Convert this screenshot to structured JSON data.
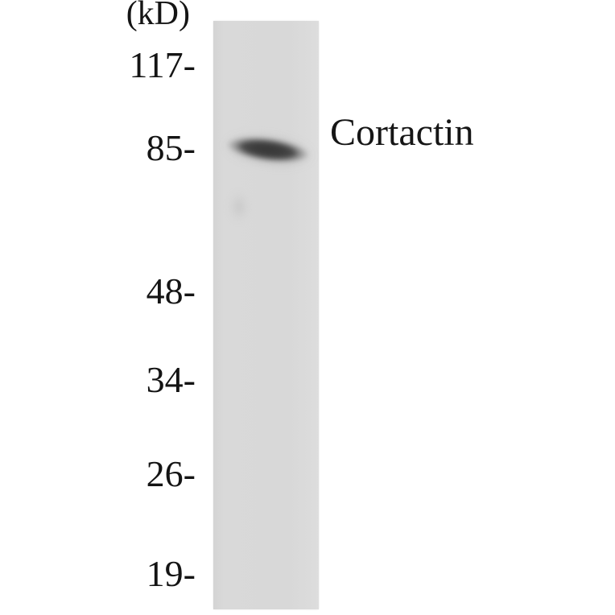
{
  "blot": {
    "unit_label": "(kD)",
    "markers": [
      "117-",
      "85-",
      "48-",
      "34-",
      "26-",
      "19-"
    ],
    "marker_values_kd": [
      117,
      85,
      48,
      34,
      26,
      19
    ],
    "band": {
      "label": "Cortactin",
      "approx_position_kd": 85
    },
    "colors": {
      "page_background": "#ffffff",
      "lane_background": "#d8d8d8",
      "band_core": "#3a3a3a",
      "text": "#141414"
    }
  }
}
